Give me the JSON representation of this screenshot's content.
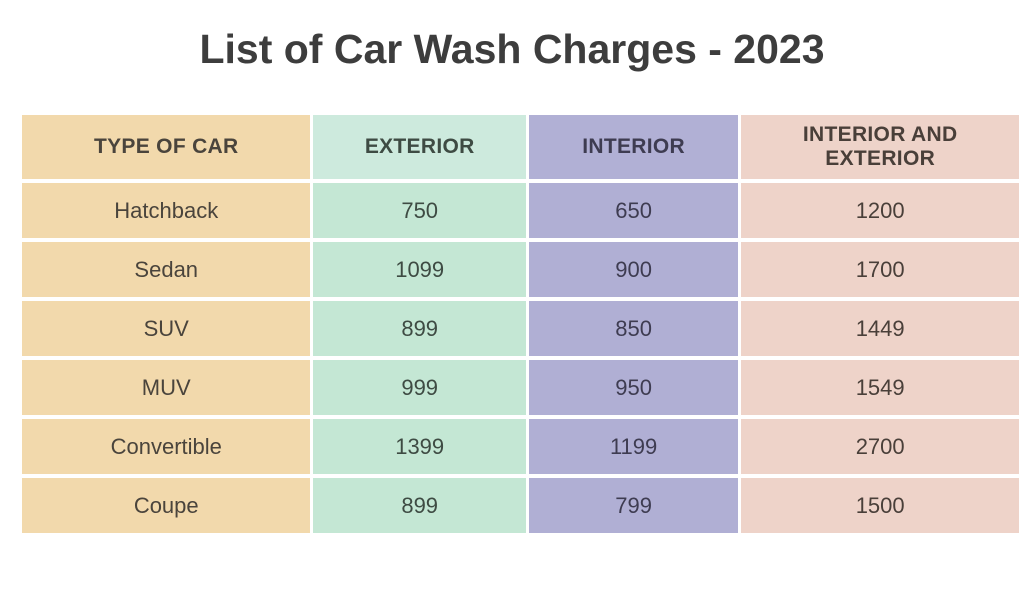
{
  "title": "List of Car Wash Charges - 2023",
  "table": {
    "columns": [
      {
        "label": "TYPE OF CAR",
        "bg": "#f2d9ac"
      },
      {
        "label": "EXTERIOR",
        "bg": "#cdeadd"
      },
      {
        "label": "INTERIOR",
        "bg": "#b1b0d5"
      },
      {
        "label": "INTERIOR AND EXTERIOR",
        "bg": "#eed3c9"
      }
    ],
    "rows": [
      {
        "type": "Hatchback",
        "exterior": "750",
        "interior": "650",
        "both": "1200"
      },
      {
        "type": "Sedan",
        "exterior": "1099",
        "interior": "900",
        "both": "1700"
      },
      {
        "type": "SUV",
        "exterior": "899",
        "interior": "850",
        "both": "1449"
      },
      {
        "type": "MUV",
        "exterior": "999",
        "interior": "950",
        "both": "1549"
      },
      {
        "type": "Convertible",
        "exterior": "1399",
        "interior": "1199",
        "both": "2700"
      },
      {
        "type": "Coupe",
        "exterior": "899",
        "interior": "799",
        "both": "1500"
      }
    ]
  },
  "colors": {
    "title_text": "#3d3d3d",
    "column_type_bg": "#f2d9ac",
    "column_exterior_bg": "#cdeadd",
    "column_interior_bg": "#b1b0d5",
    "column_both_bg": "#eed3c9",
    "row_gap": "#ffffff"
  },
  "chart_data": {
    "type": "table",
    "title": "List of Car Wash Charges - 2023",
    "columns": [
      "TYPE OF CAR",
      "EXTERIOR",
      "INTERIOR",
      "INTERIOR AND EXTERIOR"
    ],
    "rows": [
      [
        "Hatchback",
        750,
        650,
        1200
      ],
      [
        "Sedan",
        1099,
        900,
        1700
      ],
      [
        "SUV",
        899,
        850,
        1449
      ],
      [
        "MUV",
        999,
        950,
        1549
      ],
      [
        "Convertible",
        1399,
        1199,
        2700
      ],
      [
        "Coupe",
        899,
        799,
        1500
      ]
    ]
  }
}
